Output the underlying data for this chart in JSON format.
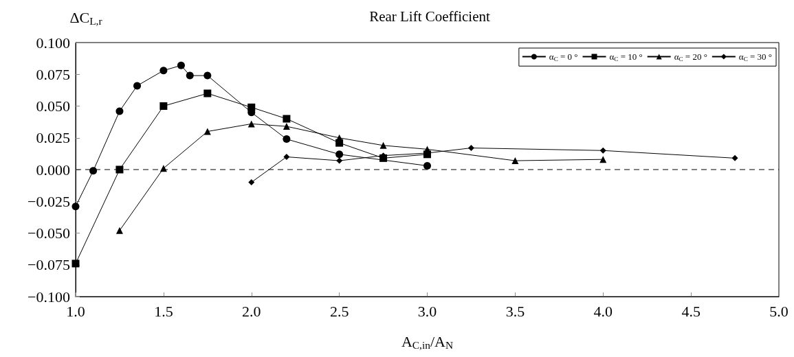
{
  "chart_data": {
    "type": "line",
    "title": "Rear Lift Coefficient",
    "ylabel": "ΔC$_{L,r}$",
    "xlabel": "A$_{C,in}$/A$_{N}$",
    "xlim": [
      1,
      5
    ],
    "xticks": [
      {
        "value": 1,
        "label": "1.0"
      },
      {
        "value": 1.5,
        "label": "1.5"
      },
      {
        "value": 2,
        "label": "2.0"
      },
      {
        "value": 2.5,
        "label": "2.5"
      },
      {
        "value": 3,
        "label": "3.0"
      },
      {
        "value": 3.5,
        "label": "3.5"
      },
      {
        "value": 4,
        "label": "4.0"
      },
      {
        "value": 4.5,
        "label": "4.5"
      },
      {
        "value": 5,
        "label": "5.0"
      }
    ],
    "ylim": [
      -0.1,
      0.1
    ],
    "yticks": [
      {
        "value": -0.1,
        "label": "−0.100"
      },
      {
        "value": -0.075,
        "label": "−0.075"
      },
      {
        "value": -0.05,
        "label": "−0.050"
      },
      {
        "value": -0.025,
        "label": "−0.025"
      },
      {
        "value": 0,
        "label": "0.000"
      },
      {
        "value": 0.025,
        "label": "0.025"
      },
      {
        "value": 0.05,
        "label": "0.050"
      },
      {
        "value": 0.075,
        "label": "0.075"
      },
      {
        "value": 0.1,
        "label": "0.100"
      }
    ],
    "grid": false,
    "legend": "top right",
    "ref_lines": [
      {
        "axis": "y",
        "value": 0,
        "line_style": "dashed",
        "color": "#000000"
      }
    ],
    "series": [
      {
        "name": "α$_{C}$ = 0 °",
        "color": "#000000",
        "marker": "circle",
        "x": [
          1.0,
          1.1,
          1.25,
          1.35,
          1.5,
          1.6,
          1.65,
          1.75,
          2.0,
          2.2,
          2.5,
          3.0
        ],
        "values": [
          -0.029,
          -0.001,
          0.046,
          0.066,
          0.078,
          0.082,
          0.074,
          0.074,
          0.045,
          0.024,
          0.012,
          0.003
        ]
      },
      {
        "name": "α$_{C}$ = 10 °",
        "color": "#000000",
        "marker": "square",
        "x": [
          1.0,
          1.25,
          1.5,
          1.75,
          2.0,
          2.2,
          2.5,
          2.75,
          3.0
        ],
        "values": [
          -0.074,
          0.0,
          0.05,
          0.06,
          0.049,
          0.04,
          0.021,
          0.009,
          0.012
        ]
      },
      {
        "name": "α$_{C}$ = 20 °",
        "color": "#000000",
        "marker": "triangle",
        "x": [
          1.25,
          1.5,
          1.75,
          2.0,
          2.2,
          2.5,
          2.75,
          3.0,
          3.5,
          4.0
        ],
        "values": [
          -0.048,
          0.001,
          0.03,
          0.036,
          0.034,
          0.025,
          0.019,
          0.016,
          0.007,
          0.008
        ]
      },
      {
        "name": "α$_{C}$ = 30 °",
        "color": "#000000",
        "marker": "diamond",
        "x": [
          2.0,
          2.2,
          2.5,
          2.75,
          3.0,
          3.25,
          4.0,
          4.75
        ],
        "values": [
          -0.01,
          0.01,
          0.007,
          0.011,
          0.013,
          0.017,
          0.015,
          0.009
        ]
      }
    ]
  }
}
